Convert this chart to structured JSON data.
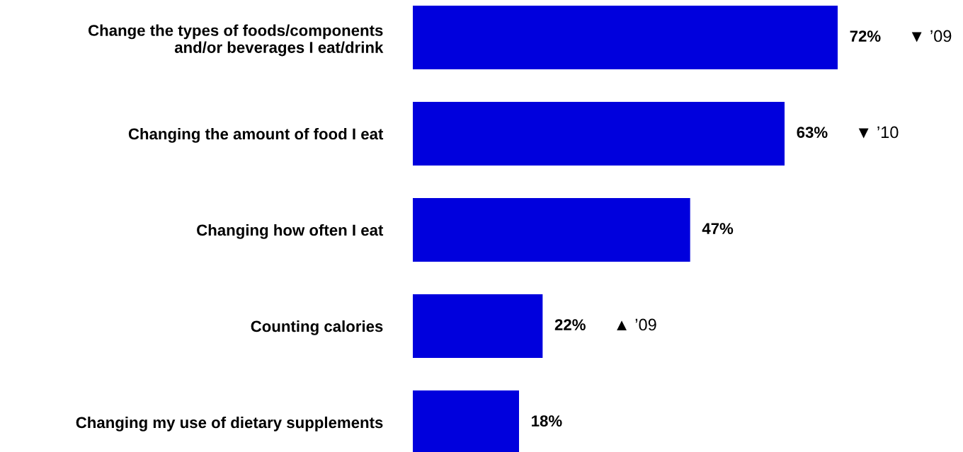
{
  "chart_data": {
    "type": "bar",
    "orientation": "horizontal",
    "categories": [
      "Change the types of foods/components\nand/or beverages I eat/drink",
      "Changing the amount of food I eat",
      "Changing how often I eat",
      "Counting calories",
      "Changing my use of dietary supplements"
    ],
    "values": [
      72,
      63,
      47,
      22,
      18
    ],
    "value_labels": [
      "72%",
      "63%",
      "47%",
      "22%",
      "18%"
    ],
    "color": "#0000dd",
    "annotations": [
      "▼ ’09",
      "▼ ’10",
      "▲ ’09"
    ],
    "grid": false,
    "legend": false
  }
}
